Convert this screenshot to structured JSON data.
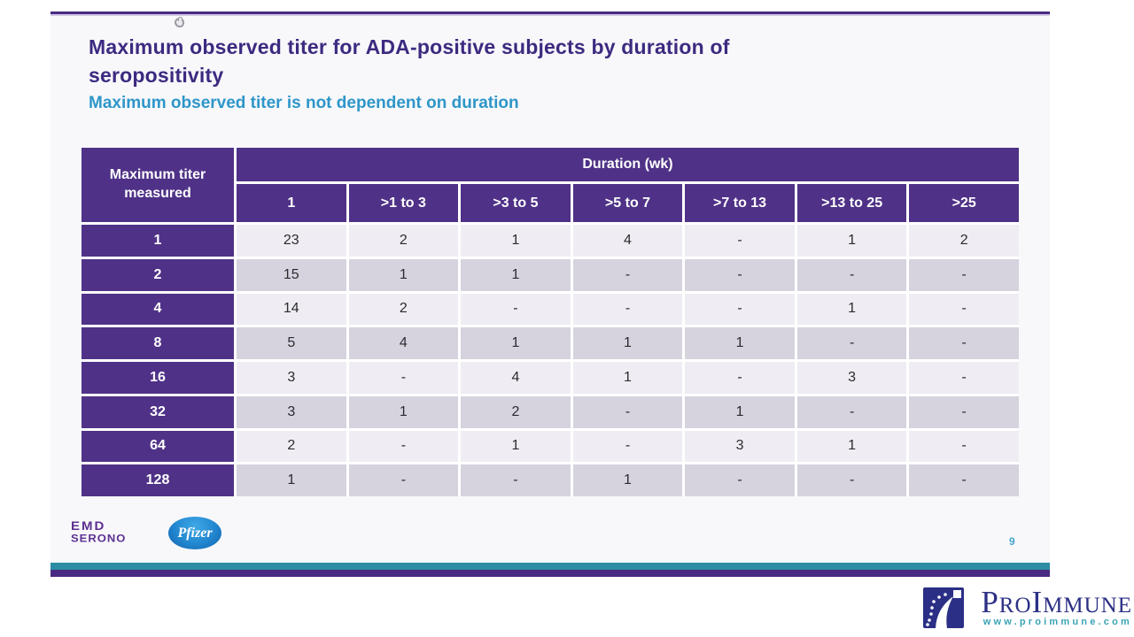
{
  "slide": {
    "title_line1": "Maximum observed titer for ADA-positive subjects by duration of",
    "title_line2": "seropositivity",
    "subtitle": "Maximum observed titer is not dependent on duration",
    "page_number": "9"
  },
  "table": {
    "corner_header": "Maximum titer measured",
    "group_header": "Duration (wk)",
    "columns": [
      "1",
      ">1 to 3",
      ">3 to 5",
      ">5 to 7",
      ">7 to 13",
      ">13 to 25",
      ">25"
    ],
    "rows": [
      {
        "label": "1",
        "values": [
          "23",
          "2",
          "1",
          "4",
          "-",
          "1",
          "2"
        ]
      },
      {
        "label": "2",
        "values": [
          "15",
          "1",
          "1",
          "-",
          "-",
          "-",
          "-"
        ]
      },
      {
        "label": "4",
        "values": [
          "14",
          "2",
          "-",
          "-",
          "-",
          "1",
          "-"
        ]
      },
      {
        "label": "8",
        "values": [
          "5",
          "4",
          "1",
          "1",
          "1",
          "-",
          "-"
        ]
      },
      {
        "label": "16",
        "values": [
          "3",
          "-",
          "4",
          "1",
          "-",
          "3",
          "-"
        ]
      },
      {
        "label": "32",
        "values": [
          "3",
          "1",
          "2",
          "-",
          "1",
          "-",
          "-"
        ]
      },
      {
        "label": "64",
        "values": [
          "2",
          "-",
          "1",
          "-",
          "3",
          "1",
          "-"
        ]
      },
      {
        "label": "128",
        "values": [
          "1",
          "-",
          "-",
          "1",
          "-",
          "-",
          "-"
        ]
      }
    ]
  },
  "footer": {
    "emd_serono_line1": "EMD",
    "emd_serono_line2": "SERONO",
    "pfizer_label": "Pfizer"
  },
  "branding": {
    "name": "ProImmune",
    "url": "www.proimmune.com"
  },
  "colors": {
    "header_purple": "#4f3287",
    "title_purple": "#3d2a80",
    "subtitle_teal": "#2e96c8",
    "row_light": "#efedf3",
    "row_dark": "#d6d3de",
    "teal_bar": "#2b8ca3",
    "purple_bar": "#4a2a82",
    "proimmune_navy": "#2b2f85",
    "proimmune_teal": "#3aa3b5"
  }
}
